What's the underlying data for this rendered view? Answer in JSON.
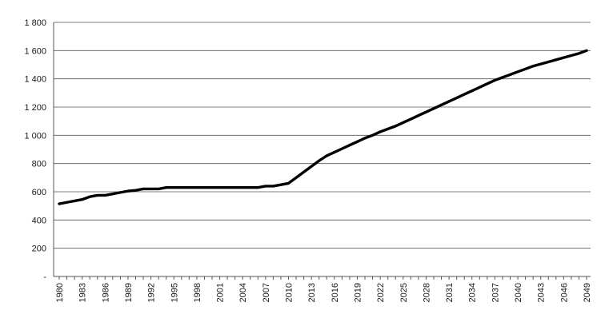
{
  "chart_data": {
    "type": "line",
    "title": "",
    "xlabel": "",
    "ylabel": "",
    "ylim": [
      0,
      1800
    ],
    "xlim": [
      1980,
      2049
    ],
    "grid": true,
    "legend": "none",
    "line_color": "#000000",
    "grid_color": "#555555",
    "y_ticks": [
      {
        "value": 0,
        "label": "-"
      },
      {
        "value": 200,
        "label": "200"
      },
      {
        "value": 400,
        "label": "400"
      },
      {
        "value": 600,
        "label": "600"
      },
      {
        "value": 800,
        "label": "800"
      },
      {
        "value": 1000,
        "label": "1 000"
      },
      {
        "value": 1200,
        "label": "1 200"
      },
      {
        "value": 1400,
        "label": "1 400"
      },
      {
        "value": 1600,
        "label": "1 600"
      },
      {
        "value": 1800,
        "label": "1 800"
      }
    ],
    "x_tick_labels": [
      "1980",
      "1983",
      "1986",
      "1989",
      "1992",
      "1995",
      "1998",
      "2001",
      "2004",
      "2007",
      "2010",
      "2013",
      "2016",
      "2019",
      "2022",
      "2025",
      "2028",
      "2031",
      "2034",
      "2037",
      "2040",
      "2043",
      "2046",
      "2049"
    ],
    "series": [
      {
        "x": [
          1980,
          1981,
          1982,
          1983,
          1984,
          1985,
          1986,
          1987,
          1988,
          1989,
          1990,
          1991,
          1992,
          1993,
          1994,
          1995,
          1996,
          1997,
          1998,
          1999,
          2000,
          2001,
          2002,
          2003,
          2004,
          2005,
          2006,
          2007,
          2008,
          2009,
          2010,
          2011,
          2012,
          2013,
          2014,
          2015,
          2016,
          2017,
          2018,
          2019,
          2020,
          2021,
          2022,
          2023,
          2024,
          2025,
          2026,
          2027,
          2028,
          2029,
          2030,
          2031,
          2032,
          2033,
          2034,
          2035,
          2036,
          2037,
          2038,
          2039,
          2040,
          2041,
          2042,
          2043,
          2044,
          2045,
          2046,
          2047,
          2048,
          2049
        ],
        "values": [
          515,
          525,
          535,
          545,
          565,
          575,
          575,
          585,
          595,
          605,
          610,
          620,
          620,
          620,
          630,
          630,
          630,
          630,
          630,
          630,
          630,
          630,
          630,
          630,
          630,
          630,
          630,
          640,
          640,
          650,
          660,
          700,
          740,
          780,
          820,
          855,
          880,
          905,
          930,
          955,
          980,
          1000,
          1025,
          1045,
          1065,
          1090,
          1115,
          1140,
          1165,
          1190,
          1215,
          1240,
          1265,
          1290,
          1315,
          1340,
          1365,
          1390,
          1410,
          1430,
          1450,
          1470,
          1490,
          1505,
          1520,
          1535,
          1550,
          1565,
          1580,
          1600
        ]
      }
    ]
  }
}
